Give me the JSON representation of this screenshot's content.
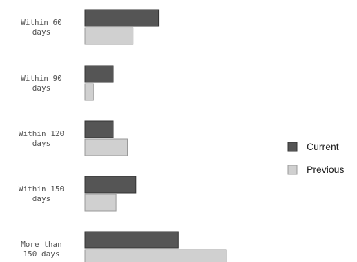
{
  "chart_data": {
    "type": "bar",
    "orientation": "horizontal",
    "categories": [
      [
        "Within 60",
        "days"
      ],
      [
        "Within 90",
        "days"
      ],
      [
        "Within 120",
        "days"
      ],
      [
        "Within 150",
        "days"
      ],
      [
        "More than",
        "150 days"
      ]
    ],
    "series": [
      {
        "name": "Current",
        "values": [
          26,
          10,
          10,
          18,
          33
        ],
        "color": "#555555",
        "stroke": "#333333"
      },
      {
        "name": "Previous",
        "values": [
          17,
          3,
          15,
          11,
          50
        ],
        "color": "#d0d0d0",
        "stroke": "#999999"
      }
    ],
    "xlim": [
      0,
      100
    ],
    "title": "",
    "xlabel": "",
    "ylabel": "",
    "grid": false,
    "legend": "right"
  }
}
